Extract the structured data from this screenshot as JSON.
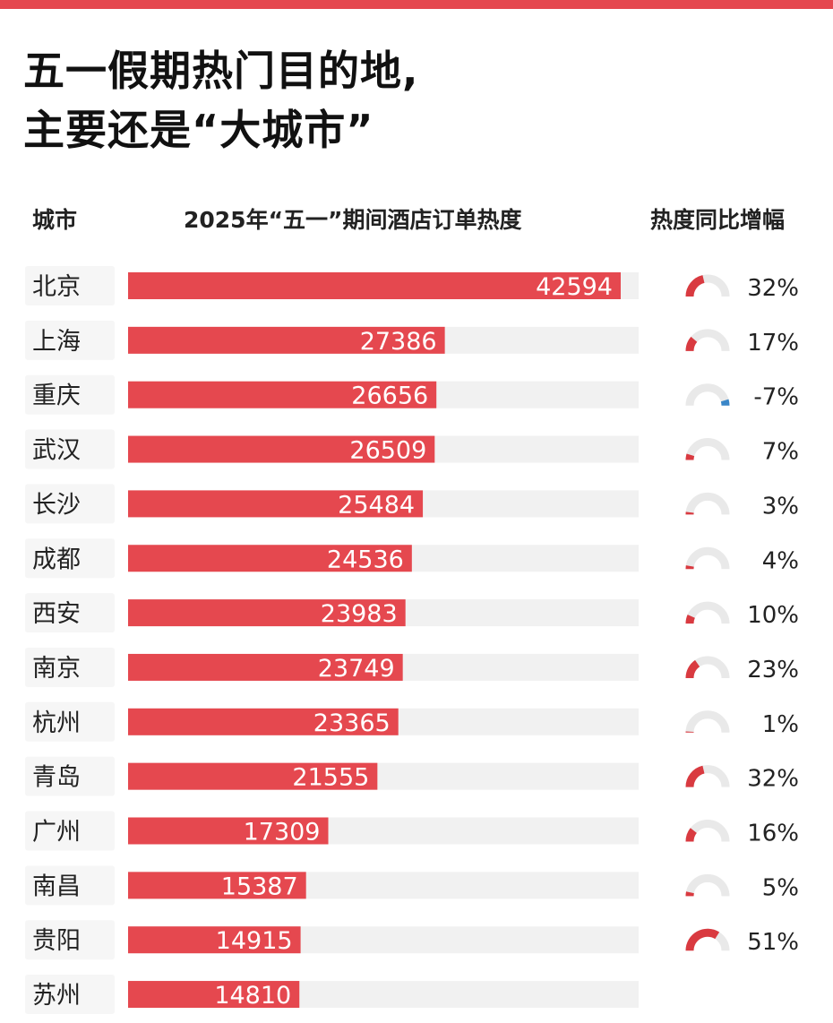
{
  "title": {
    "line1": "五一假期热门目的地,",
    "line2": "主要还是“大城市”"
  },
  "columns": {
    "city": "城市",
    "orders": "2025年“五一”期间酒店订单热度",
    "growth": "热度同比增幅"
  },
  "colors": {
    "bar": "#e5484f",
    "track": "#f1f1f1",
    "gauge_track": "#e9e9e9",
    "gauge_up": "#d93a40",
    "gauge_down": "#3a86c8",
    "row_stripe": "#f6f6f6"
  },
  "chart_data": {
    "type": "bar",
    "orientation": "horizontal",
    "categories": [
      "北京",
      "上海",
      "重庆",
      "武汉",
      "长沙",
      "成都",
      "西安",
      "南京",
      "杭州",
      "青岛",
      "广州",
      "南昌",
      "贵阳",
      "苏州"
    ],
    "series": [
      {
        "values": [
          42594,
          27386,
          26656,
          26509,
          25484,
          24536,
          23983,
          23749,
          23365,
          21555,
          17309,
          15387,
          14915,
          14810
        ]
      }
    ],
    "growth_labels": [
      "32%",
      "17%",
      "-7%",
      "7%",
      "3%",
      "4%",
      "10%",
      "23%",
      "1%",
      "32%",
      "16%",
      "5%",
      "51%",
      ""
    ],
    "growth_values": [
      32,
      17,
      -7,
      7,
      3,
      4,
      10,
      23,
      1,
      32,
      16,
      5,
      51,
      null
    ],
    "xlim": [
      0,
      43000
    ],
    "grid": false,
    "legend": "none"
  }
}
